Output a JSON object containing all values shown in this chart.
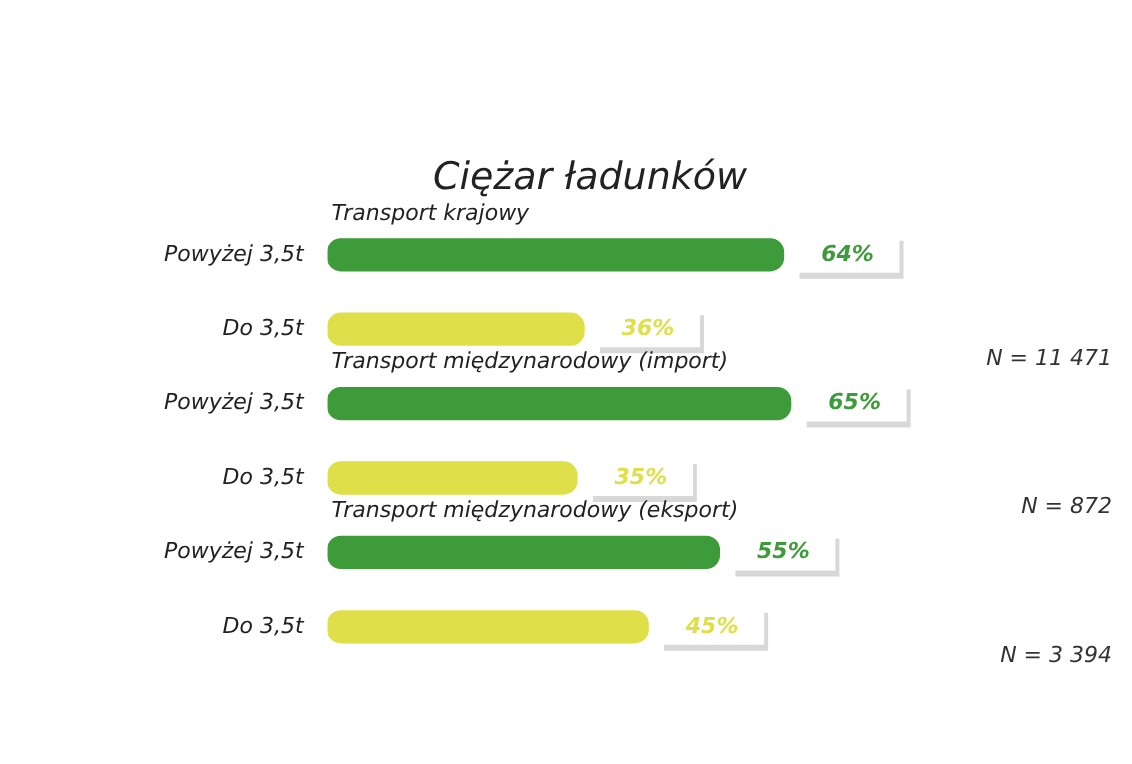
{
  "chart_data": {
    "type": "bar",
    "orientation": "horizontal",
    "title": "Ciężar ładunków",
    "categories": [
      "Powyżej 3,5t",
      "Do 3,5t",
      "Powyżej 3,5t",
      "Do 3,5t",
      "Powyżej 3,5t",
      "Do 3,5t"
    ],
    "values": [
      64,
      36,
      65,
      35,
      55,
      45
    ],
    "colors": [
      "#3d9b3a",
      "#dfdf4a",
      "#3d9b3a",
      "#dfdf4a",
      "#3d9b3a",
      "#dfdf4a"
    ],
    "value_labels": [
      "64%",
      "36%",
      "65%",
      "35%",
      "55%",
      "45%"
    ],
    "annotations": [
      "Transport krajowy",
      "N = 11 471",
      "Transport międzynarodowy (import)",
      "N = 872",
      "Transport międzynarodowy (eksport)",
      "N = 3 394"
    ],
    "legend": false
  }
}
